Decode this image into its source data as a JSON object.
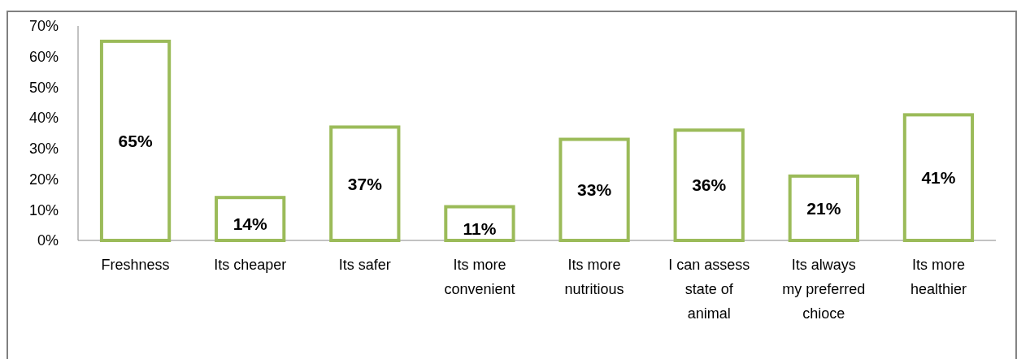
{
  "chart_data": {
    "type": "bar",
    "categories": [
      "Freshness",
      "Its cheaper",
      "Its safer",
      "Its more convenient",
      "Its more nutritious",
      "I can assess state of animal",
      "Its always my preferred chioce",
      "Its more healthier"
    ],
    "values": [
      65,
      14,
      37,
      11,
      33,
      36,
      21,
      41
    ],
    "value_labels": [
      "65%",
      "14%",
      "37%",
      "11%",
      "33%",
      "36%",
      "21%",
      "41%"
    ],
    "color": "#9bbb59",
    "ylim": [
      0,
      70
    ],
    "yticks": [
      {
        "value": 0,
        "label": "0%"
      },
      {
        "value": 10,
        "label": "10%"
      },
      {
        "value": 20,
        "label": "20%"
      },
      {
        "value": 30,
        "label": "30%"
      },
      {
        "value": 40,
        "label": "40%"
      },
      {
        "value": 50,
        "label": "50%"
      },
      {
        "value": 60,
        "label": "60%"
      },
      {
        "value": 70,
        "label": "70%"
      }
    ],
    "grid": false
  }
}
